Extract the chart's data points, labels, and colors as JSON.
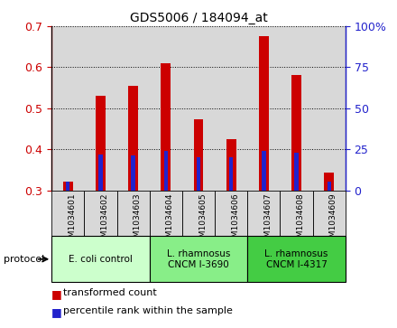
{
  "title": "GDS5006 / 184094_at",
  "samples": [
    "GSM1034601",
    "GSM1034602",
    "GSM1034603",
    "GSM1034604",
    "GSM1034605",
    "GSM1034606",
    "GSM1034607",
    "GSM1034608",
    "GSM1034609"
  ],
  "transformed_counts": [
    0.32,
    0.53,
    0.555,
    0.61,
    0.473,
    0.425,
    0.675,
    0.58,
    0.343
  ],
  "percentile_ranks": [
    5,
    22,
    21,
    24,
    20,
    20,
    24,
    23,
    5
  ],
  "bar_base": 0.3,
  "ylim_left": [
    0.3,
    0.7
  ],
  "ylim_right": [
    0,
    100
  ],
  "yticks_left": [
    0.3,
    0.4,
    0.5,
    0.6,
    0.7
  ],
  "yticks_right": [
    0,
    25,
    50,
    75,
    100
  ],
  "group_labels": [
    "E. coli control",
    "L. rhamnosus\nCNCM I-3690",
    "L. rhamnosus\nCNCM I-4317"
  ],
  "group_starts": [
    0,
    3,
    6
  ],
  "group_ends": [
    3,
    6,
    9
  ],
  "group_colors": [
    "#ccffcc",
    "#88ee88",
    "#44cc44"
  ],
  "red_color": "#cc0000",
  "blue_color": "#2222cc",
  "col_bg_color": "#d8d8d8",
  "bar_width": 0.3,
  "blue_bar_width": 0.12
}
